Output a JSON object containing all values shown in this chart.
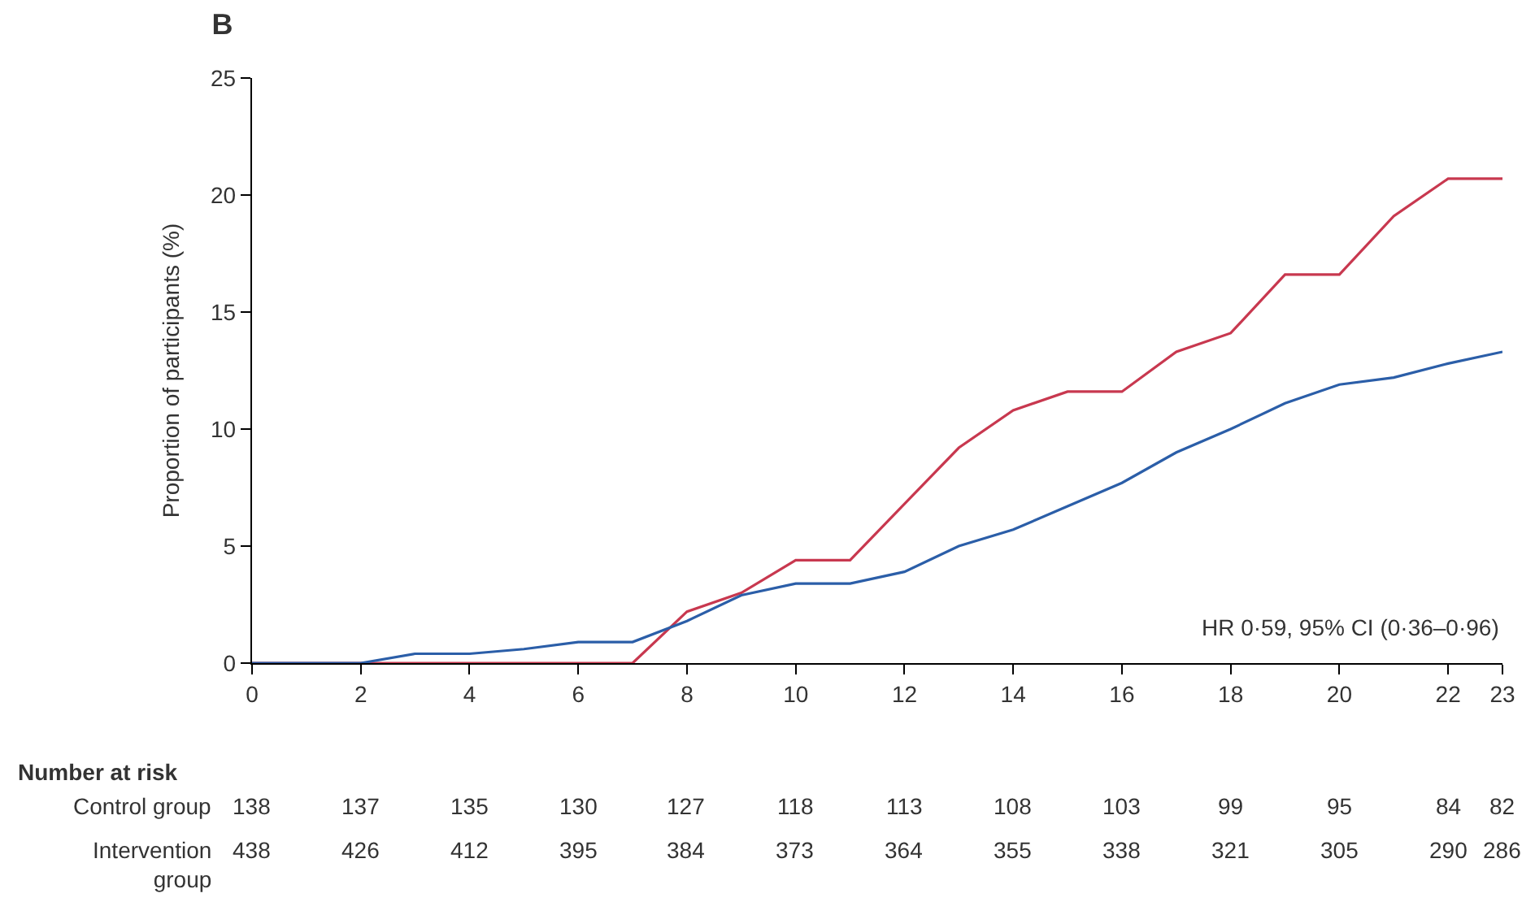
{
  "chart_data": {
    "type": "line",
    "title": "B",
    "ylabel": "Proportion of participants (%)",
    "x": [
      0,
      1,
      2,
      3,
      4,
      5,
      6,
      7,
      8,
      9,
      10,
      11,
      12,
      13,
      14,
      15,
      16,
      17,
      18,
      19,
      20,
      21,
      22,
      23
    ],
    "series": [
      {
        "color": "#c8384f",
        "values": [
          0,
          0,
          0,
          0,
          0,
          0,
          0,
          0,
          2.2,
          3.0,
          4.4,
          4.4,
          6.8,
          9.2,
          10.8,
          11.6,
          11.6,
          13.3,
          14.1,
          16.6,
          16.6,
          19.1,
          20.7,
          20.7
        ]
      },
      {
        "color": "#2b5ea8",
        "values": [
          0,
          0,
          0,
          0.4,
          0.4,
          0.6,
          0.9,
          0.9,
          1.8,
          2.9,
          3.4,
          3.4,
          3.9,
          5.0,
          5.7,
          6.7,
          7.7,
          9.0,
          10.0,
          11.1,
          11.9,
          12.2,
          12.8,
          13.3
        ]
      }
    ],
    "xlim": [
      0,
      23
    ],
    "xticks": [
      0,
      2,
      4,
      6,
      8,
      10,
      12,
      14,
      16,
      18,
      20,
      22,
      23
    ],
    "ylim": [
      0,
      25
    ],
    "yticks": [
      0,
      5,
      10,
      15,
      20,
      25
    ],
    "marker": "none",
    "line_style": "solid",
    "annotations": [
      "HR 0·59, 95% CI (0·36–0·96)",
      "Number at risk",
      "Control group",
      "Intervention group",
      "138",
      "137",
      "135",
      "130",
      "127",
      "118",
      "113",
      "108",
      "103",
      "99",
      "95",
      "84",
      "82",
      "438",
      "426",
      "412",
      "395",
      "384",
      "373",
      "364",
      "355",
      "338",
      "321",
      "305",
      "290",
      "286"
    ]
  }
}
